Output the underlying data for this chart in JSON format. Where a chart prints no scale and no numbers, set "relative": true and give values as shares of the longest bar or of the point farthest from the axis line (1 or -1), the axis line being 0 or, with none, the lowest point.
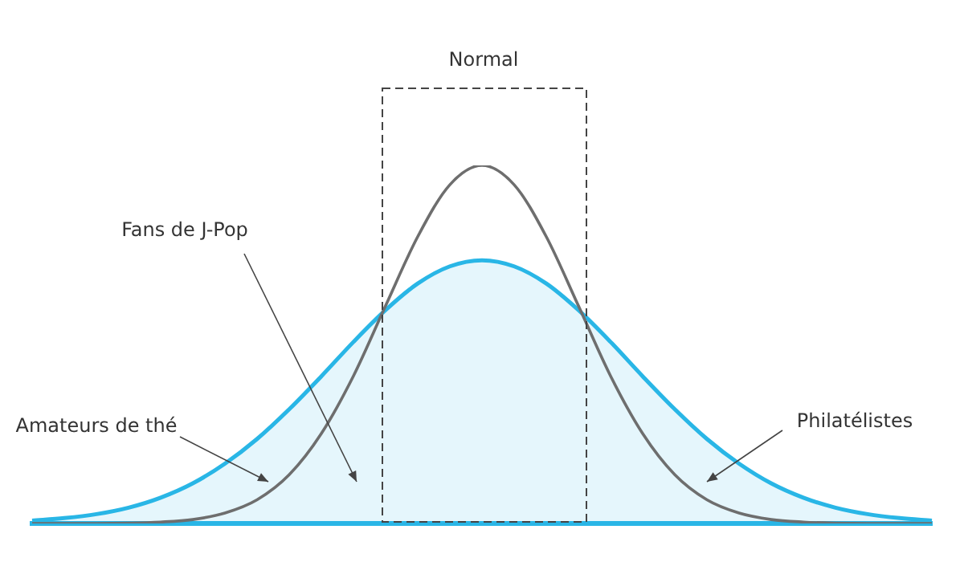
{
  "chart_data": {
    "type": "area",
    "relative": true,
    "categories": [
      null,
      null,
      null,
      null,
      null,
      null,
      null,
      null,
      null,
      null,
      null,
      null,
      null,
      null,
      null,
      null,
      null,
      null,
      null,
      null,
      null,
      null,
      null,
      null,
      null,
      null,
      null,
      null,
      null
    ],
    "series": [
      {
        "color": "#29b6e6",
        "values": [
          0.008,
          0.015,
          0.026,
          0.044,
          0.072,
          0.112,
          0.167,
          0.236,
          0.319,
          0.411,
          0.507,
          0.596,
          0.67,
          0.718,
          0.735,
          0.718,
          0.67,
          0.596,
          0.507,
          0.411,
          0.319,
          0.236,
          0.167,
          0.112,
          0.072,
          0.044,
          0.026,
          0.015,
          0.008
        ]
      },
      {
        "type": "line",
        "color": "#6e6e6e",
        "values": [
          0,
          0,
          0,
          0.001,
          0.004,
          0.011,
          0.029,
          0.066,
          0.136,
          0.251,
          0.412,
          0.608,
          0.801,
          0.946,
          1,
          0.946,
          0.801,
          0.608,
          0.412,
          0.251,
          0.136,
          0.066,
          0.029,
          0.011,
          0.004,
          0.001,
          0,
          0,
          0
        ]
      }
    ],
    "annotations": [
      "Normal",
      "Fans de J-Pop",
      "Amateurs de thé",
      "Philatélistes"
    ],
    "grid": false,
    "legend": false,
    "marker": "none"
  }
}
